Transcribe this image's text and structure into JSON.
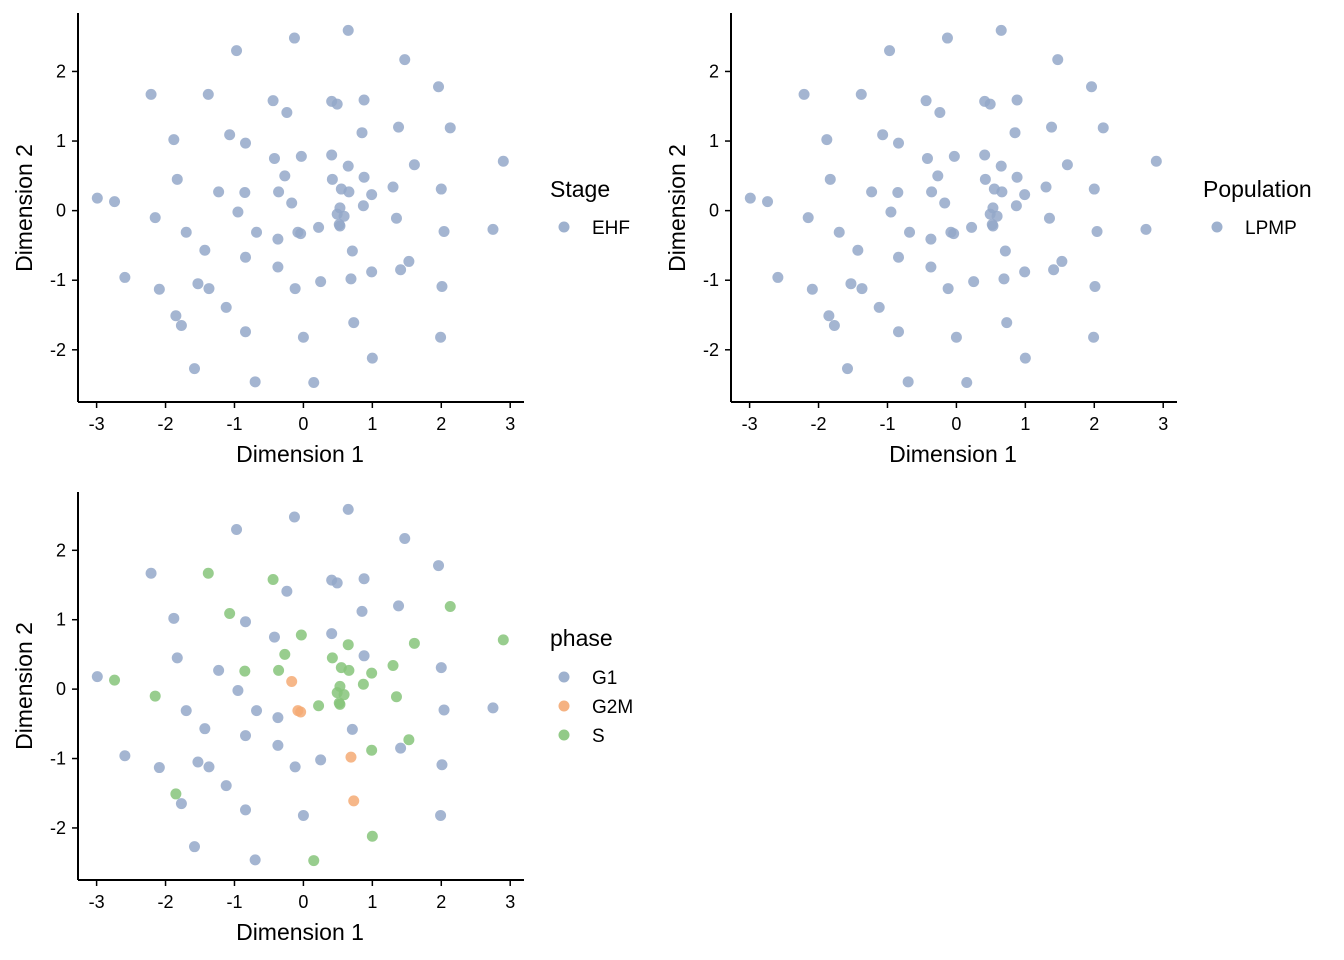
{
  "colors": {
    "G1": "#94a8c9",
    "G2M": "#f4aa74",
    "S": "#86c47a"
  },
  "chart_data": [
    {
      "type": "scatter",
      "panel": "top-left",
      "xlabel": "Dimension 1",
      "ylabel": "Dimension 2",
      "xlim": [
        -3.27,
        3.2
      ],
      "ylim": [
        -2.75,
        2.84
      ],
      "xticks": [
        -3,
        -2,
        -1,
        0,
        1,
        2,
        3
      ],
      "xtick_labels": [
        "-3",
        "-2",
        "-1",
        "0",
        "1",
        "2",
        "3"
      ],
      "yticks": [
        -2,
        -1,
        0,
        1,
        2
      ],
      "ytick_labels": [
        "-2",
        "-1",
        "0",
        "1",
        "2"
      ],
      "grid": false,
      "legend": {
        "title": "Stage",
        "placement": "right",
        "entries": [
          {
            "label": "EHF",
            "color": "#94a8c9"
          }
        ]
      },
      "color_by": "single",
      "single_color": "#94a8c9"
    },
    {
      "type": "scatter",
      "panel": "top-right",
      "xlabel": "Dimension 1",
      "ylabel": "Dimension 2",
      "xlim": [
        -3.27,
        3.2
      ],
      "ylim": [
        -2.75,
        2.84
      ],
      "xticks": [
        -3,
        -2,
        -1,
        0,
        1,
        2,
        3
      ],
      "xtick_labels": [
        "-3",
        "-2",
        "-1",
        "0",
        "1",
        "2",
        "3"
      ],
      "yticks": [
        -2,
        -1,
        0,
        1,
        2
      ],
      "ytick_labels": [
        "-2",
        "-1",
        "0",
        "1",
        "2"
      ],
      "grid": false,
      "legend": {
        "title": "Population",
        "placement": "right",
        "entries": [
          {
            "label": "LPMP",
            "color": "#94a8c9"
          }
        ]
      },
      "color_by": "single",
      "single_color": "#94a8c9"
    },
    {
      "type": "scatter",
      "panel": "bottom-left",
      "xlabel": "Dimension 1",
      "ylabel": "Dimension 2",
      "xlim": [
        -3.27,
        3.2
      ],
      "ylim": [
        -2.75,
        2.84
      ],
      "xticks": [
        -3,
        -2,
        -1,
        0,
        1,
        2,
        3
      ],
      "xtick_labels": [
        "-3",
        "-2",
        "-1",
        "0",
        "1",
        "2",
        "3"
      ],
      "yticks": [
        -2,
        -1,
        0,
        1,
        2
      ],
      "ytick_labels": [
        "-2",
        "-1",
        "0",
        "1",
        "2"
      ],
      "grid": false,
      "legend": {
        "title": "phase",
        "placement": "right",
        "entries": [
          {
            "label": "G1",
            "color": "#94a8c9"
          },
          {
            "label": "G2M",
            "color": "#f4aa74"
          },
          {
            "label": "S",
            "color": "#86c47a"
          }
        ]
      },
      "color_by": "phase"
    }
  ],
  "points": [
    {
      "x": 0.65,
      "y": 2.59,
      "phase": "G1"
    },
    {
      "x": -0.13,
      "y": 2.48,
      "phase": "G1"
    },
    {
      "x": -0.97,
      "y": 2.3,
      "phase": "G1"
    },
    {
      "x": 1.47,
      "y": 2.17,
      "phase": "G1"
    },
    {
      "x": 1.96,
      "y": 1.78,
      "phase": "G1"
    },
    {
      "x": -2.21,
      "y": 1.67,
      "phase": "G1"
    },
    {
      "x": -1.38,
      "y": 1.67,
      "phase": "S"
    },
    {
      "x": -0.44,
      "y": 1.58,
      "phase": "S"
    },
    {
      "x": 0.41,
      "y": 1.57,
      "phase": "G1"
    },
    {
      "x": 0.49,
      "y": 1.53,
      "phase": "G1"
    },
    {
      "x": 0.88,
      "y": 1.59,
      "phase": "G1"
    },
    {
      "x": -0.24,
      "y": 1.41,
      "phase": "G1"
    },
    {
      "x": 1.38,
      "y": 1.2,
      "phase": "G1"
    },
    {
      "x": 2.13,
      "y": 1.19,
      "phase": "S"
    },
    {
      "x": -1.07,
      "y": 1.09,
      "phase": "S"
    },
    {
      "x": 0.85,
      "y": 1.12,
      "phase": "G1"
    },
    {
      "x": -1.88,
      "y": 1.02,
      "phase": "G1"
    },
    {
      "x": -0.84,
      "y": 0.97,
      "phase": "G1"
    },
    {
      "x": -0.42,
      "y": 0.75,
      "phase": "G1"
    },
    {
      "x": -0.03,
      "y": 0.78,
      "phase": "S"
    },
    {
      "x": 0.41,
      "y": 0.8,
      "phase": "G1"
    },
    {
      "x": 0.65,
      "y": 0.64,
      "phase": "S"
    },
    {
      "x": 1.61,
      "y": 0.66,
      "phase": "S"
    },
    {
      "x": 2.9,
      "y": 0.71,
      "phase": "S"
    },
    {
      "x": -1.83,
      "y": 0.45,
      "phase": "G1"
    },
    {
      "x": -0.27,
      "y": 0.5,
      "phase": "S"
    },
    {
      "x": 0.42,
      "y": 0.45,
      "phase": "S"
    },
    {
      "x": 0.88,
      "y": 0.48,
      "phase": "G1"
    },
    {
      "x": -1.23,
      "y": 0.27,
      "phase": "G1"
    },
    {
      "x": -0.85,
      "y": 0.26,
      "phase": "S"
    },
    {
      "x": -0.36,
      "y": 0.27,
      "phase": "S"
    },
    {
      "x": 0.55,
      "y": 0.31,
      "phase": "S"
    },
    {
      "x": 0.66,
      "y": 0.27,
      "phase": "S"
    },
    {
      "x": 1.3,
      "y": 0.34,
      "phase": "S"
    },
    {
      "x": 2.0,
      "y": 0.31,
      "phase": "G1"
    },
    {
      "x": -2.99,
      "y": 0.18,
      "phase": "G1"
    },
    {
      "x": -2.74,
      "y": 0.13,
      "phase": "S"
    },
    {
      "x": -0.17,
      "y": 0.11,
      "phase": "G2M"
    },
    {
      "x": 0.53,
      "y": 0.04,
      "phase": "S"
    },
    {
      "x": 0.87,
      "y": 0.07,
      "phase": "S"
    },
    {
      "x": 0.99,
      "y": 0.23,
      "phase": "S"
    },
    {
      "x": -2.15,
      "y": -0.1,
      "phase": "S"
    },
    {
      "x": -0.95,
      "y": -0.02,
      "phase": "G1"
    },
    {
      "x": 0.49,
      "y": -0.05,
      "phase": "S"
    },
    {
      "x": 0.59,
      "y": -0.08,
      "phase": "S"
    },
    {
      "x": 1.35,
      "y": -0.11,
      "phase": "S"
    },
    {
      "x": 0.22,
      "y": -0.24,
      "phase": "S"
    },
    {
      "x": 0.52,
      "y": -0.2,
      "phase": "S"
    },
    {
      "x": 0.53,
      "y": -0.22,
      "phase": "S"
    },
    {
      "x": -1.7,
      "y": -0.31,
      "phase": "G1"
    },
    {
      "x": -0.68,
      "y": -0.31,
      "phase": "G1"
    },
    {
      "x": -0.08,
      "y": -0.31,
      "phase": "G2M"
    },
    {
      "x": -0.04,
      "y": -0.33,
      "phase": "G2M"
    },
    {
      "x": 2.04,
      "y": -0.3,
      "phase": "G1"
    },
    {
      "x": 2.75,
      "y": -0.27,
      "phase": "G1"
    },
    {
      "x": -1.43,
      "y": -0.57,
      "phase": "G1"
    },
    {
      "x": -0.37,
      "y": -0.41,
      "phase": "G1"
    },
    {
      "x": 0.71,
      "y": -0.58,
      "phase": "G1"
    },
    {
      "x": -2.59,
      "y": -0.96,
      "phase": "G1"
    },
    {
      "x": -0.84,
      "y": -0.67,
      "phase": "G1"
    },
    {
      "x": -0.37,
      "y": -0.81,
      "phase": "G1"
    },
    {
      "x": 0.69,
      "y": -0.98,
      "phase": "G2M"
    },
    {
      "x": 0.99,
      "y": -0.88,
      "phase": "S"
    },
    {
      "x": 1.41,
      "y": -0.85,
      "phase": "G1"
    },
    {
      "x": 1.53,
      "y": -0.73,
      "phase": "S"
    },
    {
      "x": -2.09,
      "y": -1.13,
      "phase": "G1"
    },
    {
      "x": -1.53,
      "y": -1.05,
      "phase": "G1"
    },
    {
      "x": -1.37,
      "y": -1.12,
      "phase": "G1"
    },
    {
      "x": -0.12,
      "y": -1.12,
      "phase": "G1"
    },
    {
      "x": 0.25,
      "y": -1.02,
      "phase": "G1"
    },
    {
      "x": 2.01,
      "y": -1.09,
      "phase": "G1"
    },
    {
      "x": -1.85,
      "y": -1.51,
      "phase": "S"
    },
    {
      "x": -1.77,
      "y": -1.65,
      "phase": "G1"
    },
    {
      "x": -1.12,
      "y": -1.39,
      "phase": "G1"
    },
    {
      "x": 0.73,
      "y": -1.61,
      "phase": "G2M"
    },
    {
      "x": -0.84,
      "y": -1.74,
      "phase": "G1"
    },
    {
      "x": 0.0,
      "y": -1.82,
      "phase": "G1"
    },
    {
      "x": 1.99,
      "y": -1.82,
      "phase": "G1"
    },
    {
      "x": 1.0,
      "y": -2.12,
      "phase": "S"
    },
    {
      "x": -1.58,
      "y": -2.27,
      "phase": "G1"
    },
    {
      "x": -0.7,
      "y": -2.46,
      "phase": "G1"
    },
    {
      "x": 0.15,
      "y": -2.47,
      "phase": "S"
    }
  ]
}
